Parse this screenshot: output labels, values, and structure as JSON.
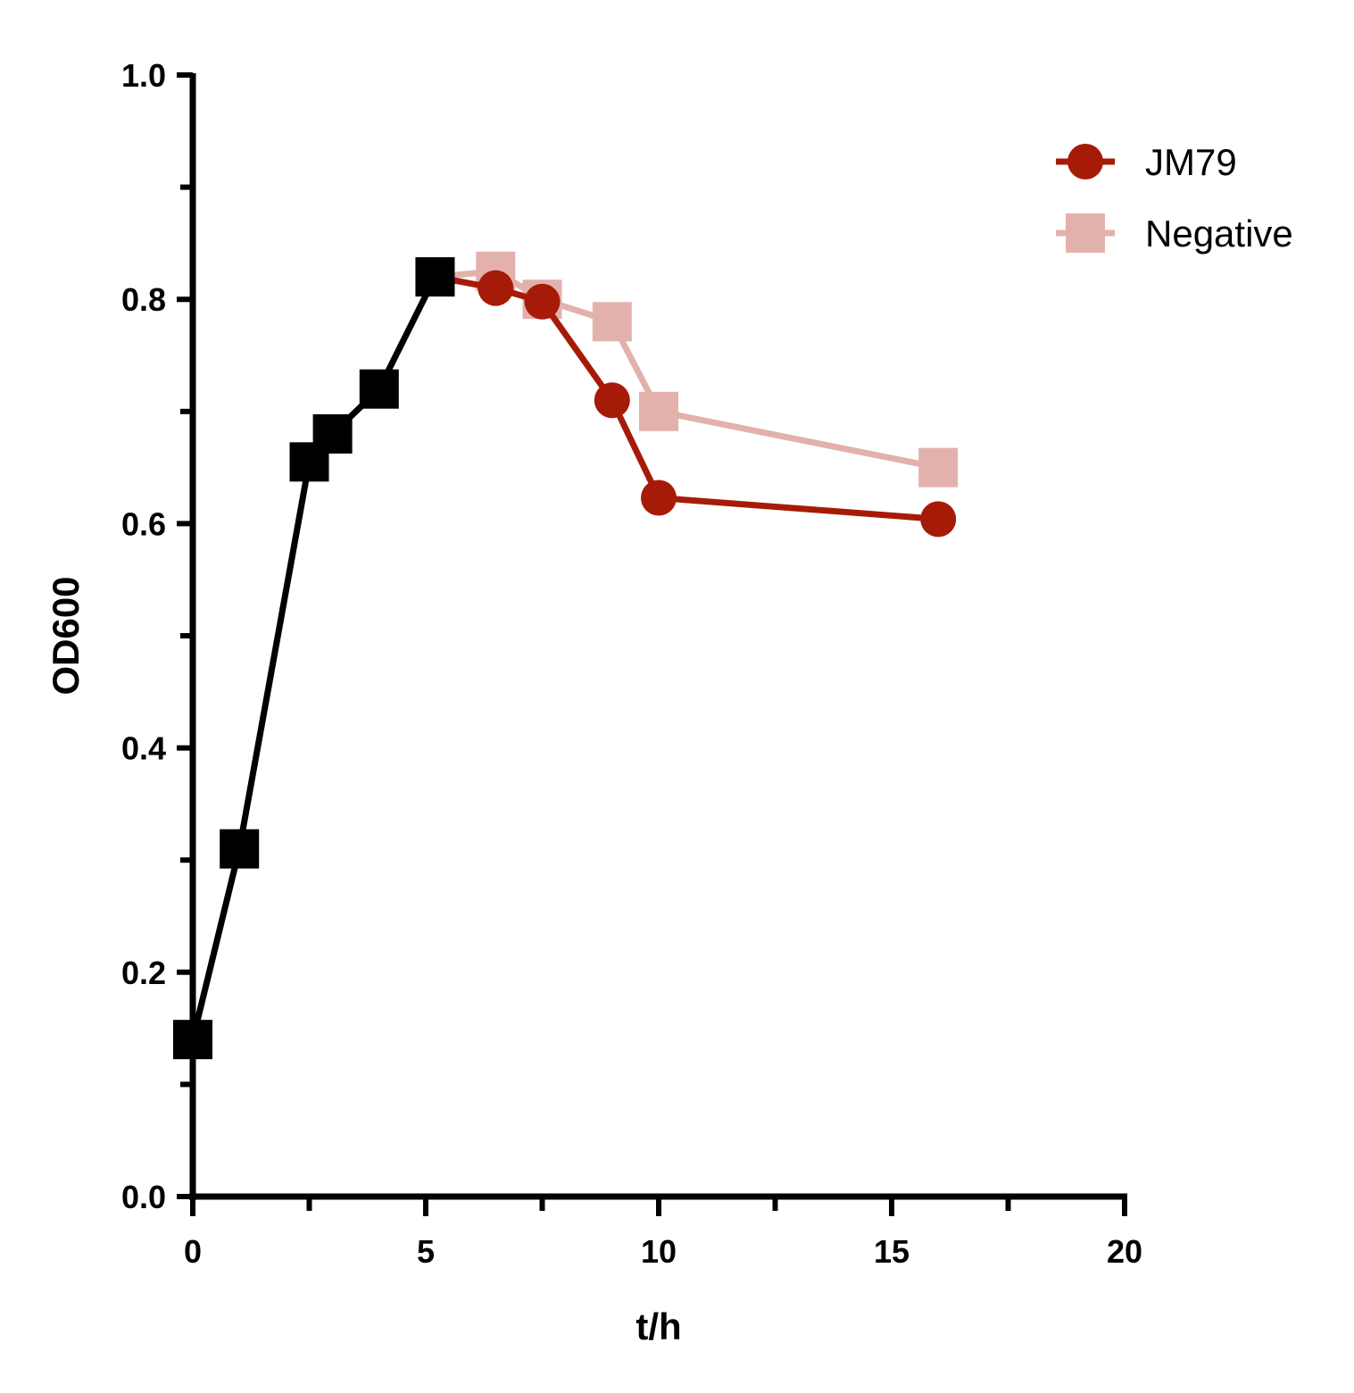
{
  "chart_data": {
    "type": "line",
    "xlabel": "t/h",
    "ylabel": "OD600",
    "xlim": [
      0,
      20
    ],
    "ylim": [
      0,
      1.0
    ],
    "x_ticks": [
      "0",
      "5",
      "10",
      "15",
      "20"
    ],
    "y_ticks": [
      "0.0",
      "0.2",
      "0.4",
      "0.6",
      "0.8",
      "1.0"
    ],
    "legend_position": "top-right",
    "series": [
      {
        "name": "",
        "color": "#000000",
        "marker": "square",
        "x": [
          0,
          1,
          2.5,
          3,
          4,
          5.2
        ],
        "y": [
          0.14,
          0.31,
          0.655,
          0.68,
          0.72,
          0.82
        ]
      },
      {
        "name": "Negative",
        "color": "#e3b1ab",
        "marker": "square",
        "x": [
          5.2,
          6.5,
          7.5,
          9,
          10,
          16
        ],
        "y": [
          0.82,
          0.825,
          0.8,
          0.78,
          0.7,
          0.65
        ]
      },
      {
        "name": "JM79",
        "color": "#a61b08",
        "marker": "circle",
        "x": [
          5.2,
          6.5,
          7.5,
          9,
          10,
          16
        ],
        "y": [
          0.82,
          0.81,
          0.798,
          0.71,
          0.623,
          0.604
        ]
      }
    ]
  }
}
